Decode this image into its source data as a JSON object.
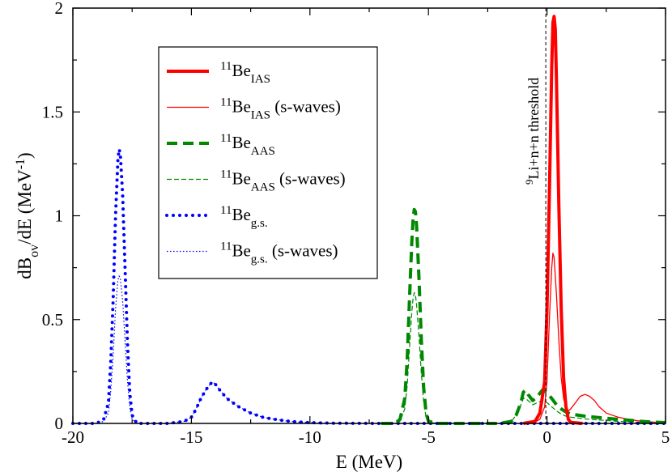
{
  "chart_data": {
    "type": "line",
    "xlabel": "E (MeV)",
    "ylabel": {
      "main": "dB",
      "sub": "ov",
      "tail": "/dE (MeV",
      "sup": "-1",
      "close": ")"
    },
    "xlim": [
      -20,
      5
    ],
    "ylim": [
      0,
      2
    ],
    "xticks": [
      -20,
      -15,
      -10,
      -5,
      0,
      5
    ],
    "yticks": [
      0,
      0.5,
      1,
      1.5,
      2
    ],
    "xtick_labels": [
      "-20",
      "-15",
      "-10",
      "-5",
      "0",
      "5"
    ],
    "ytick_labels": [
      "0",
      "0.5",
      "1",
      "1.5",
      "2"
    ],
    "grid": false,
    "legend_position": "top-left",
    "threshold": {
      "x": -0.05,
      "label_sup": "9",
      "label_text": "Li+n+n threshold"
    },
    "series": [
      {
        "key": "ias",
        "legend": {
          "sup": "11",
          "base": "Be",
          "sub": "IAS",
          "suffix": ""
        },
        "color": "#ff0000",
        "style": "solid-thick",
        "x": [
          -1.0,
          -0.5,
          -0.3,
          -0.1,
          0.0,
          0.1,
          0.2,
          0.25,
          0.3,
          0.35,
          0.4,
          0.5,
          0.6,
          0.7,
          0.8,
          0.9,
          1.0,
          1.5
        ],
        "y": [
          0.0,
          0.01,
          0.05,
          0.2,
          0.55,
          1.1,
          1.72,
          1.93,
          1.96,
          1.9,
          1.65,
          1.05,
          0.55,
          0.22,
          0.08,
          0.02,
          0.005,
          0.0
        ]
      },
      {
        "key": "ias_s",
        "legend": {
          "sup": "11",
          "base": "Be",
          "sub": "IAS",
          "suffix": " (s-waves)"
        },
        "color": "#ff0000",
        "style": "solid-thin",
        "x": [
          -0.6,
          -0.3,
          -0.1,
          0.0,
          0.1,
          0.2,
          0.25,
          0.3,
          0.4,
          0.5,
          0.6,
          0.7,
          0.8,
          0.9,
          1.0,
          1.2,
          1.4,
          1.6,
          1.8,
          2.0,
          2.2,
          2.5,
          3.0,
          3.5,
          4.0,
          4.5,
          5.0
        ],
        "y": [
          0.0,
          0.02,
          0.08,
          0.2,
          0.5,
          0.75,
          0.82,
          0.8,
          0.62,
          0.4,
          0.22,
          0.12,
          0.08,
          0.06,
          0.07,
          0.1,
          0.13,
          0.14,
          0.13,
          0.11,
          0.08,
          0.05,
          0.03,
          0.018,
          0.01,
          0.006,
          0.004
        ]
      },
      {
        "key": "aas",
        "legend": {
          "sup": "11",
          "base": "Be",
          "sub": "AAS",
          "suffix": ""
        },
        "color": "#008800",
        "style": "dashed-thick",
        "x": [
          -7.0,
          -6.4,
          -6.2,
          -6.0,
          -5.9,
          -5.8,
          -5.7,
          -5.65,
          -5.6,
          -5.55,
          -5.5,
          -5.4,
          -5.3,
          -5.2,
          -5.1,
          -5.0,
          -4.6,
          -3.0,
          -2.0,
          -1.5,
          -1.3,
          -1.1,
          -1.0,
          -0.9,
          -0.8,
          -0.6,
          -0.4,
          -0.2,
          0.0,
          0.2,
          0.4,
          0.6,
          0.8,
          1.0,
          1.3,
          1.6,
          2.0,
          2.5,
          3.0,
          3.5,
          4.0,
          4.5,
          5.0
        ],
        "y": [
          0.0,
          0.0,
          0.02,
          0.12,
          0.3,
          0.6,
          0.88,
          0.98,
          1.03,
          1.02,
          0.95,
          0.7,
          0.4,
          0.17,
          0.05,
          0.01,
          0.0,
          0.0,
          0.0,
          0.01,
          0.04,
          0.1,
          0.15,
          0.16,
          0.14,
          0.11,
          0.13,
          0.16,
          0.15,
          0.12,
          0.09,
          0.07,
          0.055,
          0.045,
          0.04,
          0.035,
          0.03,
          0.025,
          0.02,
          0.015,
          0.01,
          0.006,
          0.004
        ]
      },
      {
        "key": "aas_s",
        "legend": {
          "sup": "11",
          "base": "Be",
          "sub": "AAS",
          "suffix": " (s-waves)"
        },
        "color": "#008800",
        "style": "dashed-thin",
        "x": [
          -7.0,
          -6.4,
          -6.2,
          -6.0,
          -5.9,
          -5.8,
          -5.7,
          -5.65,
          -5.6,
          -5.55,
          -5.5,
          -5.4,
          -5.3,
          -5.2,
          -5.1,
          -5.0,
          -4.6,
          -3.0,
          -2.0,
          -1.5,
          -1.3,
          -1.1,
          -1.0,
          -0.9,
          -0.8,
          -0.6,
          -0.4,
          -0.2,
          0.0,
          0.2,
          0.4,
          0.6,
          0.8,
          1.0,
          1.3,
          1.6,
          2.0,
          2.5,
          3.0,
          3.5,
          4.0,
          4.5,
          5.0
        ],
        "y": [
          0.0,
          0.0,
          0.01,
          0.07,
          0.18,
          0.36,
          0.54,
          0.6,
          0.63,
          0.62,
          0.57,
          0.42,
          0.24,
          0.1,
          0.03,
          0.006,
          0.0,
          0.0,
          0.0,
          0.01,
          0.04,
          0.09,
          0.12,
          0.12,
          0.11,
          0.09,
          0.1,
          0.11,
          0.1,
          0.08,
          0.06,
          0.045,
          0.035,
          0.03,
          0.026,
          0.022,
          0.018,
          0.014,
          0.01,
          0.007,
          0.005,
          0.003,
          0.002
        ]
      },
      {
        "key": "gs",
        "legend": {
          "sup": "11",
          "base": "Be",
          "sub": "g.s.",
          "suffix": ""
        },
        "color": "#0000ff",
        "style": "dotted-thick",
        "x": [
          -20.0,
          -19.0,
          -18.7,
          -18.5,
          -18.4,
          -18.3,
          -18.2,
          -18.1,
          -18.05,
          -18.0,
          -17.9,
          -17.8,
          -17.7,
          -17.6,
          -17.5,
          -17.3,
          -16.0,
          -15.3,
          -15.0,
          -14.8,
          -14.6,
          -14.4,
          -14.2,
          -14.1,
          -14.0,
          -13.8,
          -13.5,
          -13.0,
          -12.5,
          -12.0,
          -11.5,
          -11.0,
          -10.5,
          -10.0,
          -9.0,
          -7.0,
          -5.0,
          -2.0,
          0.0,
          5.0
        ],
        "y": [
          0.0,
          0.0,
          0.02,
          0.1,
          0.3,
          0.6,
          1.0,
          1.27,
          1.32,
          1.3,
          1.1,
          0.75,
          0.4,
          0.15,
          0.04,
          0.0,
          0.0,
          0.01,
          0.03,
          0.07,
          0.12,
          0.16,
          0.19,
          0.2,
          0.19,
          0.16,
          0.12,
          0.08,
          0.05,
          0.03,
          0.02,
          0.012,
          0.007,
          0.004,
          0.001,
          0.0,
          0.0,
          0.0,
          0.0,
          0.0
        ]
      },
      {
        "key": "gs_s",
        "legend": {
          "sup": "11",
          "base": "Be",
          "sub": "g.s.",
          "suffix": " (s-waves)"
        },
        "color": "#0000ff",
        "style": "dotted-thin",
        "x": [
          -20.0,
          -19.0,
          -18.7,
          -18.5,
          -18.4,
          -18.3,
          -18.2,
          -18.1,
          -18.05,
          -18.0,
          -17.9,
          -17.8,
          -17.7,
          -17.6,
          -17.5,
          -17.3,
          -16.0,
          -15.3,
          -15.0,
          -14.8,
          -14.6,
          -14.4,
          -14.2,
          -14.1,
          -14.0,
          -13.8,
          -13.5,
          -13.0,
          -12.5,
          -12.0,
          -11.5,
          -11.0,
          -10.5,
          -10.0,
          -9.0,
          -7.0,
          -5.0,
          -2.0,
          0.0,
          5.0
        ],
        "y": [
          0.0,
          0.0,
          0.01,
          0.05,
          0.16,
          0.33,
          0.55,
          0.69,
          0.71,
          0.7,
          0.59,
          0.4,
          0.21,
          0.08,
          0.02,
          0.0,
          0.0,
          0.01,
          0.03,
          0.07,
          0.12,
          0.16,
          0.19,
          0.2,
          0.19,
          0.16,
          0.12,
          0.08,
          0.05,
          0.03,
          0.02,
          0.012,
          0.007,
          0.004,
          0.001,
          0.0,
          0.0,
          0.0,
          0.0,
          0.0
        ]
      }
    ]
  }
}
